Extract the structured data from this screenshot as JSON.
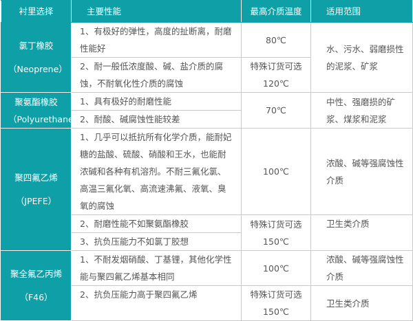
{
  "headers": [
    "衬里选择",
    "主要性能",
    "最高介质温度",
    "适用范围"
  ],
  "rows": [
    {
      "name": "氯丁橡胶",
      "sub": "（Neoprene）",
      "p1": "1、有极好的弹性，高度的扯断离，耐磨性能好",
      "p2": "2、耐一般低浓度酸、碱、盐介质的腐蚀，不耐氧化性介质的腐蚀",
      "t1": "80℃",
      "t2a": "特殊订货可选",
      "t2b": "120℃",
      "scope": "水、污水、弱磨损性的泥浆、矿浆"
    },
    {
      "name": "聚氨酯橡胶",
      "sub": "（Polyurethane）",
      "p1": "1、具有极好的耐磨性能",
      "p2": "2、耐酸、碱腐蚀性能较差",
      "t1": "70℃",
      "scope": "中性、强磨损的矿浆、煤浆和泥浆"
    },
    {
      "name": "聚四氟乙烯",
      "sub": "（JPEFE）",
      "p1": "1、几乎可以抵抗所有化学介质，能耐妃糖的盐酸、硫酸、硝酸和王水，也能耐浓碱和各种有机溶剂。不耐三氟化氯、高温三氟化氧、高流速沸氟、液氧、臭氧的腐蚀",
      "p2": "2、耐磨性能不如聚氨酯橡胶",
      "p3": "3、抗负压能力不如氯丁胶想",
      "t1": "100℃",
      "t2a": "特殊订货可选",
      "t2b": "150℃",
      "scope1": "浓酸、碱等强腐蚀性介质",
      "scope2": "卫生类介质"
    },
    {
      "name": "聚全氟乙丙烯",
      "sub": "（F46）",
      "p1": "1、不耐发烟硝酸、丁基锂，其他化学性能与聚四氟乙烯基本相同",
      "p2": "2、抗负压能力高于聚四氟乙烯",
      "t1": "100℃",
      "t2a": "特殊订货可选",
      "t2b": "150℃",
      "scope1": "浓酸、碱等强腐蚀性介质",
      "scope2": "卫生类介质"
    }
  ],
  "colors": {
    "header": "#0e9fa7",
    "border": "#c9c9c9",
    "text": "#555555"
  }
}
